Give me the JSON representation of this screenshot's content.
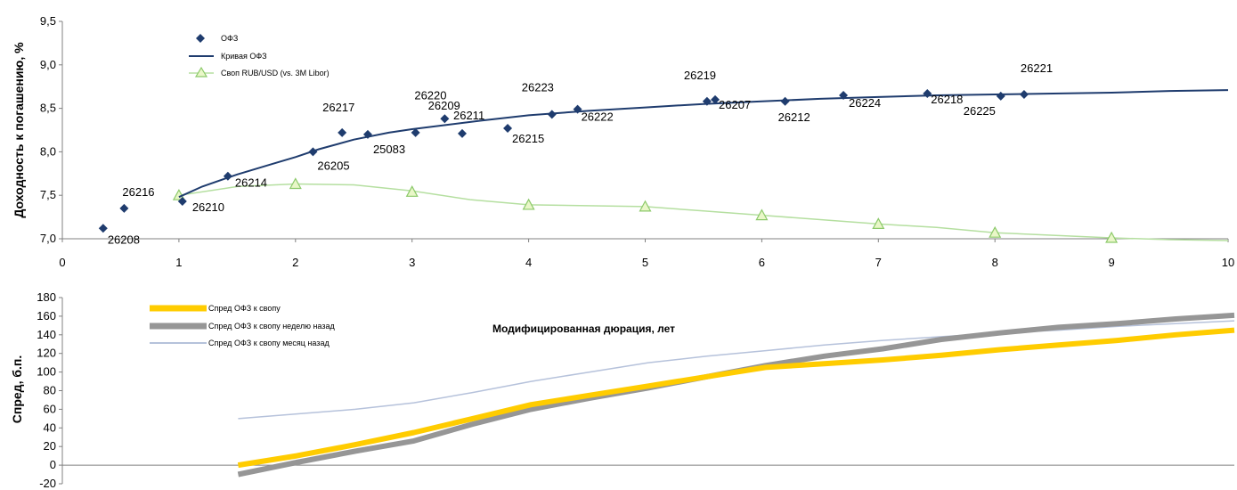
{
  "chart_data": [
    {
      "type": "scatter",
      "ylabel": "Доходность к погашению, %",
      "xlabel": "Модифицированная дюрация, лет",
      "xlim": [
        0,
        10
      ],
      "ylim": [
        7.0,
        9.5
      ],
      "xticks": [
        "0",
        "1",
        "2",
        "3",
        "4",
        "5",
        "6",
        "7",
        "8",
        "9",
        "10"
      ],
      "yticks": [
        "7,0",
        "7,5",
        "8,0",
        "8,5",
        "9,0",
        "9,5"
      ],
      "grid": false,
      "legend_position": "top-left",
      "colors": {
        "ofz": "#1f3c6e",
        "curve": "#1f3c6e",
        "swap": "#b5dfa0",
        "swap_marker_fill": "#e9f7c8",
        "swap_marker_stroke": "#8cc96a"
      },
      "series": [
        {
          "name": "ОФЗ",
          "kind": "markers",
          "points": [
            {
              "x": 0.35,
              "y": 7.12,
              "label": "26208"
            },
            {
              "x": 0.53,
              "y": 7.35,
              "label": "26216"
            },
            {
              "x": 1.03,
              "y": 7.43,
              "label": "26210"
            },
            {
              "x": 1.42,
              "y": 7.72,
              "label": "26214"
            },
            {
              "x": 2.15,
              "y": 8.0,
              "label": "26205"
            },
            {
              "x": 2.4,
              "y": 8.22,
              "label": "26217"
            },
            {
              "x": 2.62,
              "y": 8.2,
              "label": "25083"
            },
            {
              "x": 3.03,
              "y": 8.22,
              "label": "26209"
            },
            {
              "x": 3.28,
              "y": 8.38,
              "label": "26220"
            },
            {
              "x": 3.43,
              "y": 8.21,
              "label": "26211"
            },
            {
              "x": 3.82,
              "y": 8.27,
              "label": "26215"
            },
            {
              "x": 4.2,
              "y": 8.43,
              "label": "26223"
            },
            {
              "x": 4.42,
              "y": 8.49,
              "label": "26222"
            },
            {
              "x": 5.53,
              "y": 8.58,
              "label": "26219"
            },
            {
              "x": 5.6,
              "y": 8.6,
              "label": "26207"
            },
            {
              "x": 6.2,
              "y": 8.58,
              "label": "26212"
            },
            {
              "x": 6.7,
              "y": 8.65,
              "label": "26224"
            },
            {
              "x": 7.42,
              "y": 8.67,
              "label": "26218"
            },
            {
              "x": 8.05,
              "y": 8.64,
              "label": "26225"
            },
            {
              "x": 8.25,
              "y": 8.66,
              "label": "26221"
            }
          ]
        },
        {
          "name": "Кривая ОФЗ",
          "kind": "line",
          "x": [
            1.0,
            1.2,
            1.5,
            1.8,
            2.0,
            2.2,
            2.5,
            2.8,
            3.0,
            3.3,
            3.6,
            4.0,
            4.5,
            5.0,
            5.5,
            6.0,
            6.5,
            7.0,
            7.5,
            8.0,
            8.5,
            9.0,
            9.5,
            10.0
          ],
          "y": [
            7.48,
            7.6,
            7.74,
            7.86,
            7.94,
            8.03,
            8.14,
            8.22,
            8.26,
            8.31,
            8.36,
            8.42,
            8.47,
            8.51,
            8.55,
            8.58,
            8.61,
            8.63,
            8.65,
            8.66,
            8.67,
            8.68,
            8.7,
            8.71
          ]
        },
        {
          "name": "Своп RUB/USD (vs. 3M Libor)",
          "kind": "line-markers",
          "x": [
            1.0,
            1.5,
            2.0,
            2.5,
            3.0,
            3.5,
            4.0,
            4.5,
            5.0,
            5.5,
            6.0,
            6.5,
            7.0,
            7.5,
            8.0,
            8.5,
            9.0,
            9.5,
            10.0
          ],
          "y": [
            7.5,
            7.6,
            7.63,
            7.62,
            7.55,
            7.45,
            7.39,
            7.38,
            7.37,
            7.32,
            7.27,
            7.22,
            7.17,
            7.13,
            7.07,
            7.04,
            7.01,
            6.99,
            6.98
          ],
          "marker_x": [
            1,
            2,
            3,
            4,
            5,
            6,
            7,
            8,
            9
          ],
          "marker_y": [
            7.5,
            7.63,
            7.54,
            7.39,
            7.37,
            7.27,
            7.17,
            7.07,
            7.01
          ]
        }
      ]
    },
    {
      "type": "line",
      "ylabel": "Спред, б.п.",
      "ylim": [
        -20,
        180
      ],
      "yticks": [
        "-20",
        "0",
        "20",
        "40",
        "60",
        "80",
        "100",
        "120",
        "140",
        "160",
        "180"
      ],
      "xlim": [
        0,
        10
      ],
      "grid": false,
      "legend_position": "top-left",
      "colors": {
        "spread": "#ffcc00",
        "week": "#969696",
        "month": "#b6c2db"
      },
      "series": [
        {
          "name": "Спред ОФЗ к свопу",
          "x": [
            1.5,
            2.0,
            2.5,
            3.0,
            3.5,
            4.0,
            4.5,
            5.0,
            5.5,
            6.0,
            6.5,
            7.0,
            7.5,
            8.0,
            8.5,
            9.0,
            9.5,
            10.0
          ],
          "y": [
            0,
            10,
            22,
            35,
            50,
            65,
            75,
            85,
            95,
            105,
            109,
            113,
            118,
            124,
            129,
            134,
            140,
            145
          ]
        },
        {
          "name": "Спред ОФЗ к свопу неделю назад",
          "x": [
            1.5,
            2.0,
            2.5,
            3.0,
            3.5,
            4.0,
            4.5,
            5.0,
            5.5,
            6.0,
            6.5,
            7.0,
            7.5,
            8.0,
            8.5,
            9.0,
            9.5,
            10.0
          ],
          "y": [
            -10,
            3,
            15,
            26,
            44,
            60,
            72,
            83,
            95,
            107,
            117,
            125,
            135,
            142,
            148,
            152,
            157,
            161
          ]
        },
        {
          "name": "Спред ОФЗ к свопу месяц назад",
          "x": [
            1.5,
            2.0,
            2.5,
            3.0,
            3.5,
            4.0,
            4.5,
            5.0,
            5.5,
            6.0,
            6.5,
            7.0,
            7.5,
            8.0,
            8.5,
            9.0,
            9.5,
            10.0
          ],
          "y": [
            50,
            55,
            60,
            67,
            78,
            90,
            100,
            110,
            117,
            123,
            129,
            134,
            138,
            142,
            145,
            149,
            152,
            155
          ]
        }
      ]
    }
  ]
}
